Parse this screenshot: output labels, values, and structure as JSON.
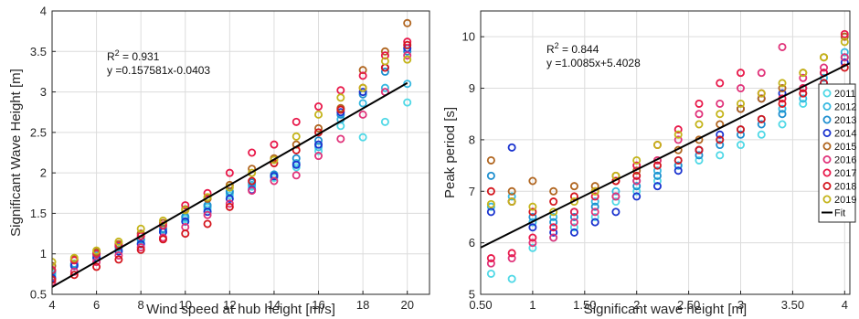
{
  "chart_data": [
    {
      "type": "scatter",
      "xlabel": "Wind speed at hub height [m/s]",
      "ylabel": "Significant Wave Height [m]",
      "xlim": [
        4,
        21
      ],
      "ylim": [
        0.5,
        4
      ],
      "xticks": [
        4,
        6,
        8,
        10,
        12,
        14,
        16,
        18,
        20
      ],
      "yticks": [
        0.5,
        1,
        1.5,
        2,
        2.5,
        3,
        3.5,
        4
      ],
      "xtick_labels": [
        "4",
        "6",
        "8",
        "10",
        "12",
        "14",
        "16",
        "18",
        "20"
      ],
      "ytick_labels": [
        "0.5",
        "1",
        "1.5",
        "2",
        "2.5",
        "3",
        "3.5",
        "4"
      ],
      "grid": true,
      "annotation": {
        "r2_prefix": "R",
        "r2_sup": "2",
        "r2_value": " = 0.931",
        "equation": "y =0.157581x-0.0403"
      },
      "fit": {
        "slope": 0.157581,
        "intercept": -0.0403,
        "x": [
          4,
          20
        ]
      },
      "series": [
        {
          "name": "2011",
          "color": "#4fd8e6",
          "x": [
            4,
            5,
            6,
            7,
            8,
            9,
            10,
            11,
            12,
            13,
            14,
            15,
            16,
            17,
            18,
            19,
            20
          ],
          "y": [
            0.72,
            0.86,
            0.96,
            1.05,
            1.13,
            1.27,
            1.43,
            1.55,
            1.72,
            1.83,
            1.94,
            2.07,
            2.27,
            2.58,
            2.44,
            2.63,
            2.87
          ]
        },
        {
          "name": "2012",
          "color": "#35b8e0",
          "x": [
            4,
            5,
            6,
            7,
            8,
            9,
            10,
            11,
            12,
            13,
            14,
            15,
            16,
            17,
            18,
            19,
            20
          ],
          "y": [
            0.75,
            0.88,
            0.98,
            1.08,
            1.17,
            1.3,
            1.45,
            1.58,
            1.75,
            1.85,
            1.96,
            2.12,
            2.32,
            2.66,
            2.86,
            3.05,
            3.1
          ]
        },
        {
          "name": "2013",
          "color": "#1e8fcf",
          "x": [
            4,
            5,
            6,
            7,
            8,
            9,
            10,
            11,
            12,
            13,
            14,
            15,
            16,
            17,
            18,
            19,
            20
          ],
          "y": [
            0.78,
            0.87,
            1.0,
            1.09,
            1.18,
            1.31,
            1.46,
            1.6,
            1.77,
            1.88,
            1.98,
            2.18,
            2.4,
            2.72,
            2.97,
            3.25,
            3.5
          ]
        },
        {
          "name": "2014",
          "color": "#1a33cf",
          "x": [
            4,
            5,
            6,
            7,
            8,
            9,
            10,
            11,
            12,
            13,
            14,
            15,
            16,
            17,
            18,
            19,
            20
          ],
          "y": [
            0.7,
            0.85,
            0.95,
            1.03,
            1.12,
            1.27,
            1.4,
            1.52,
            1.68,
            1.79,
            1.96,
            2.1,
            2.35,
            2.75,
            3.0,
            3.3,
            3.54
          ]
        },
        {
          "name": "2015",
          "color": "#b0651f",
          "x": [
            4,
            5,
            6,
            7,
            8,
            9,
            10,
            11,
            12,
            13,
            14,
            15,
            16,
            17,
            18,
            19,
            20
          ],
          "y": [
            0.85,
            0.93,
            1.02,
            1.12,
            1.25,
            1.38,
            1.55,
            1.68,
            1.85,
            2.05,
            2.18,
            2.35,
            2.55,
            2.8,
            3.27,
            3.5,
            3.85
          ]
        },
        {
          "name": "2016",
          "color": "#e0337a",
          "x": [
            4,
            5,
            6,
            7,
            8,
            9,
            10,
            11,
            12,
            13,
            14,
            15,
            16,
            17,
            18,
            19,
            20
          ],
          "y": [
            0.65,
            0.78,
            0.9,
            0.98,
            1.08,
            1.2,
            1.33,
            1.48,
            1.62,
            1.78,
            1.9,
            1.97,
            2.21,
            2.42,
            2.72,
            3.0,
            3.45
          ]
        },
        {
          "name": "2017",
          "color": "#e8194a",
          "x": [
            4,
            5,
            6,
            7,
            8,
            9,
            10,
            11,
            12,
            13,
            14,
            15,
            16,
            17,
            18,
            19,
            20
          ],
          "y": [
            0.8,
            0.92,
            1.0,
            1.1,
            1.22,
            1.35,
            1.6,
            1.75,
            2.0,
            2.25,
            2.35,
            2.63,
            2.82,
            3.02,
            3.2,
            3.45,
            3.62
          ]
        },
        {
          "name": "2018",
          "color": "#d4161e",
          "x": [
            4,
            5,
            6,
            7,
            8,
            9,
            10,
            11,
            12,
            13,
            14,
            15,
            16,
            17,
            18,
            19,
            20
          ],
          "y": [
            0.68,
            0.74,
            0.84,
            0.93,
            1.05,
            1.18,
            1.25,
            1.37,
            1.58,
            1.9,
            2.12,
            2.28,
            2.5,
            2.78,
            3.05,
            3.3,
            3.58
          ]
        },
        {
          "name": "2019",
          "color": "#c4b41a",
          "x": [
            4,
            5,
            6,
            7,
            8,
            9,
            10,
            11,
            12,
            13,
            14,
            15,
            16,
            17,
            18,
            19,
            20
          ],
          "y": [
            0.9,
            0.95,
            1.04,
            1.15,
            1.31,
            1.41,
            1.54,
            1.7,
            1.82,
            2.0,
            2.16,
            2.45,
            2.72,
            2.93,
            3.05,
            3.38,
            3.4
          ]
        }
      ]
    },
    {
      "type": "scatter",
      "xlabel": "Significant wave height [m]",
      "ylabel": "Peak period [s]",
      "xlim": [
        0.5,
        4.05
      ],
      "ylim": [
        5,
        10.5
      ],
      "xticks": [
        0.5,
        1,
        1.5,
        2,
        2.5,
        3,
        3.5,
        4
      ],
      "yticks": [
        5,
        6,
        7,
        8,
        9,
        10
      ],
      "xtick_labels": [
        "0.50",
        "1",
        "1.50",
        "2",
        "2.50",
        "3",
        "3.50",
        "4"
      ],
      "ytick_labels": [
        "5",
        "6",
        "7",
        "8",
        "9",
        "10"
      ],
      "grid": true,
      "annotation": {
        "r2_prefix": "R",
        "r2_sup": "2",
        "r2_value": " = 0.844",
        "equation": "y =1.0085x+5.4028"
      },
      "fit": {
        "slope": 1.0085,
        "intercept": 5.4028,
        "x": [
          0.5,
          4.05
        ]
      },
      "legend": {
        "placement": "right",
        "fit_label": "Fit",
        "entries": [
          "2011",
          "2012",
          "2013",
          "2014",
          "2015",
          "2016",
          "2017",
          "2018",
          "2019"
        ]
      },
      "series": [
        {
          "name": "2011",
          "color": "#4fd8e6",
          "x": [
            0.6,
            0.8,
            1.0,
            1.2,
            1.4,
            1.6,
            1.8,
            2.0,
            2.2,
            2.4,
            2.6,
            2.8,
            3.0,
            3.2,
            3.4,
            3.6,
            3.8,
            4.0
          ],
          "y": [
            5.4,
            5.3,
            5.9,
            6.1,
            6.3,
            6.5,
            6.8,
            7.0,
            7.2,
            7.5,
            7.6,
            7.7,
            7.9,
            8.1,
            8.3,
            8.7,
            9.1,
            9.6
          ]
        },
        {
          "name": "2012",
          "color": "#35b8e0",
          "x": [
            0.6,
            0.8,
            1.0,
            1.2,
            1.4,
            1.6,
            1.8,
            2.0,
            2.2,
            2.4,
            2.6,
            2.8,
            3.0,
            3.2,
            3.4,
            3.6,
            3.8,
            4.0
          ],
          "y": [
            6.7,
            6.9,
            6.4,
            6.5,
            6.6,
            6.8,
            7.0,
            7.2,
            7.4,
            7.6,
            7.8,
            8.0,
            8.2,
            8.4,
            8.6,
            8.8,
            9.2,
            9.7
          ]
        },
        {
          "name": "2013",
          "color": "#1e8fcf",
          "x": [
            0.6,
            0.8,
            1.0,
            1.2,
            1.4,
            1.6,
            1.8,
            2.0,
            2.2,
            2.4,
            2.6,
            2.8,
            3.0,
            3.2,
            3.4,
            3.6,
            3.8,
            4.0
          ],
          "y": [
            7.3,
            6.8,
            6.5,
            6.4,
            6.5,
            6.7,
            6.9,
            7.1,
            7.3,
            7.5,
            7.7,
            7.9,
            8.1,
            8.3,
            8.5,
            8.9,
            9.3,
            9.6
          ]
        },
        {
          "name": "2014",
          "color": "#1a33cf",
          "x": [
            0.6,
            0.8,
            1.0,
            1.2,
            1.4,
            1.6,
            1.8,
            2.0,
            2.2,
            2.4,
            2.6,
            2.8,
            3.0,
            3.2,
            3.4,
            3.6,
            3.8,
            4.0
          ],
          "y": [
            6.6,
            7.85,
            6.3,
            6.2,
            6.2,
            6.4,
            6.6,
            6.9,
            7.1,
            7.4,
            7.8,
            8.1,
            8.6,
            8.8,
            8.9,
            9.0,
            9.1,
            9.5
          ]
        },
        {
          "name": "2015",
          "color": "#b0651f",
          "x": [
            0.6,
            0.8,
            1.0,
            1.2,
            1.4,
            1.6,
            1.8,
            2.0,
            2.2,
            2.4,
            2.6,
            2.8,
            3.0,
            3.2,
            3.4,
            3.6,
            3.8,
            4.0
          ],
          "y": [
            7.6,
            7.0,
            7.2,
            7.0,
            7.1,
            7.1,
            7.3,
            7.4,
            7.6,
            7.8,
            8.0,
            8.3,
            8.6,
            8.8,
            9.0,
            9.3,
            9.6,
            10.0
          ]
        },
        {
          "name": "2016",
          "color": "#e0337a",
          "x": [
            0.6,
            0.8,
            1.0,
            1.2,
            1.4,
            1.6,
            1.8,
            2.0,
            2.2,
            2.4,
            2.6,
            2.8,
            3.0,
            3.2,
            3.4,
            3.6,
            3.8,
            4.0
          ],
          "y": [
            5.6,
            5.7,
            6.0,
            6.1,
            6.4,
            6.6,
            6.9,
            7.2,
            7.6,
            8.0,
            8.5,
            8.7,
            9.0,
            9.3,
            9.8,
            9.2,
            9.4,
            9.6
          ]
        },
        {
          "name": "2017",
          "color": "#e8194a",
          "x": [
            0.6,
            0.8,
            1.0,
            1.2,
            1.4,
            1.6,
            1.8,
            2.0,
            2.2,
            2.4,
            2.6,
            2.8,
            3.0,
            3.2,
            3.4,
            3.6,
            3.8,
            4.0
          ],
          "y": [
            5.7,
            5.8,
            6.1,
            6.3,
            6.6,
            6.9,
            7.2,
            7.5,
            7.9,
            8.2,
            8.7,
            9.1,
            9.3,
            8.9,
            8.8,
            9.0,
            9.3,
            10.05
          ]
        },
        {
          "name": "2018",
          "color": "#d4161e",
          "x": [
            0.6,
            0.8,
            1.0,
            1.2,
            1.4,
            1.6,
            1.8,
            2.0,
            2.2,
            2.4,
            2.6,
            2.8,
            3.0,
            3.2,
            3.4,
            3.6,
            3.8,
            4.0
          ],
          "y": [
            7.0,
            6.8,
            6.6,
            6.8,
            6.9,
            7.0,
            7.2,
            7.3,
            7.5,
            7.6,
            7.8,
            8.0,
            8.2,
            8.4,
            8.7,
            8.9,
            9.1,
            9.4
          ]
        },
        {
          "name": "2019",
          "color": "#c4b41a",
          "x": [
            0.6,
            0.8,
            1.0,
            1.2,
            1.4,
            1.6,
            1.8,
            2.0,
            2.2,
            2.4,
            2.6,
            2.8,
            3.0,
            3.2,
            3.4,
            3.6,
            3.8,
            4.0
          ],
          "y": [
            6.75,
            6.8,
            6.7,
            6.6,
            6.8,
            7.0,
            7.3,
            7.6,
            7.9,
            8.1,
            8.3,
            8.5,
            8.7,
            8.9,
            9.1,
            9.3,
            9.6,
            9.9
          ]
        }
      ]
    }
  ]
}
